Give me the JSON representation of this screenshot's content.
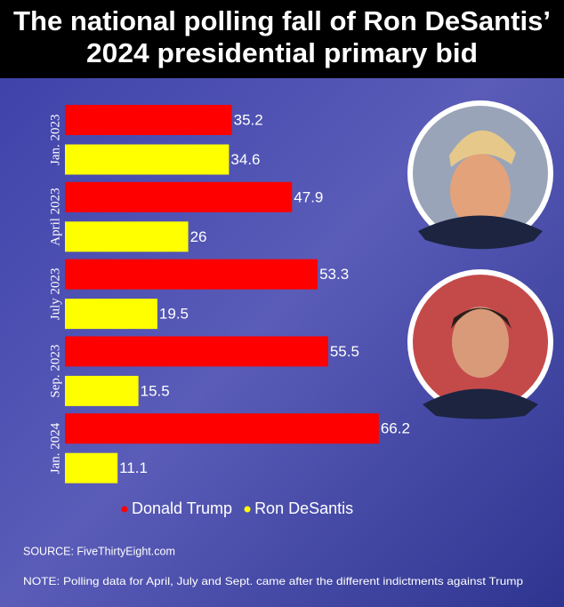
{
  "chart_data": {
    "type": "bar",
    "orientation": "horizontal",
    "title": [
      "The national polling fall of Ron DeSantis’",
      "2024 presidential primary bid"
    ],
    "categories": [
      "Jan. 2023",
      "April 2023",
      "July 2023",
      "Sep. 2023",
      "Jan. 2024"
    ],
    "series": [
      {
        "name": "Donald Trump",
        "color": "#ff0000",
        "values": [
          35.2,
          47.9,
          53.3,
          55.5,
          66.2
        ]
      },
      {
        "name": "Ron DeSantis",
        "color": "#ffff00",
        "values": [
          34.6,
          26,
          19.5,
          15.5,
          11.1
        ]
      }
    ],
    "source": "SOURCE: FiveThirtyEight.com",
    "note": "NOTE: Polling data for April, July and Sept. came after the different indictments against Trump"
  }
}
